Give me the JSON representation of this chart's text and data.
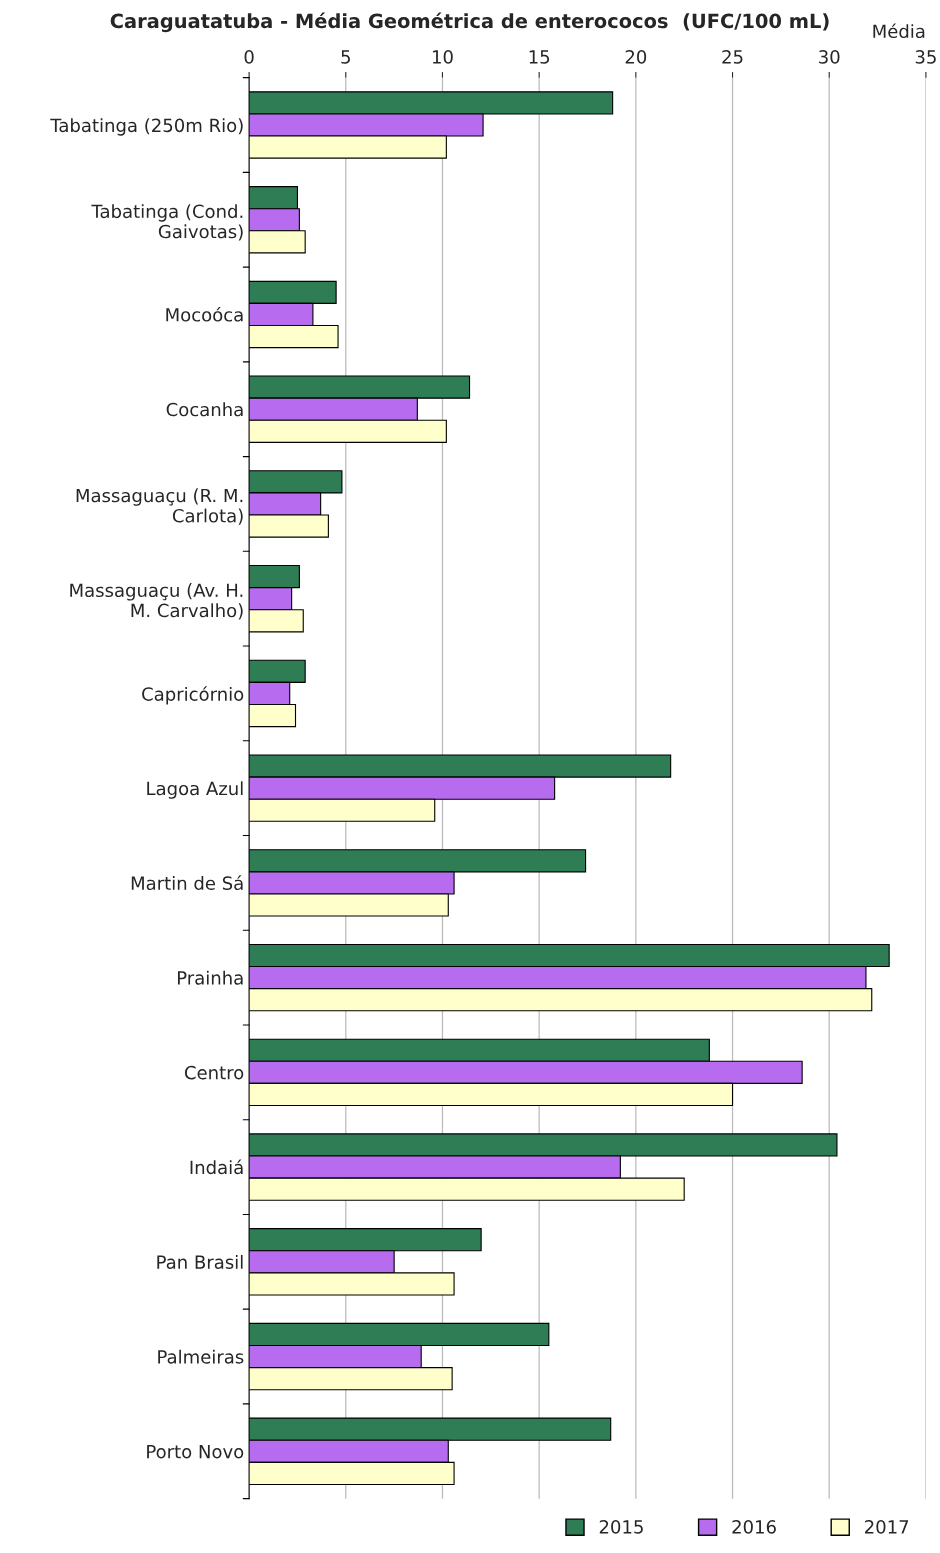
{
  "chart_data": {
    "type": "bar",
    "orientation": "horizontal",
    "title": "Caraguatatuba - Média Geométrica de enterococos  (UFC/100 mL)",
    "xlabel": "Média",
    "categories": [
      "Tabatinga (250m Rio)",
      "Tabatinga (Cond.\nGaivotas)",
      "Mocoóca",
      "Cocanha",
      "Massaguaçu (R. M.\nCarlota)",
      "Massaguaçu (Av. H.\nM. Carvalho)",
      "Capricórnio",
      "Lagoa Azul",
      "Martin de Sá",
      "Prainha",
      "Centro",
      "Indaiá",
      "Pan Brasil",
      "Palmeiras",
      "Porto Novo"
    ],
    "series": [
      {
        "name": "2015",
        "color": "#2e7d55",
        "values": [
          18.8,
          2.5,
          4.5,
          11.4,
          4.8,
          2.6,
          2.9,
          21.8,
          17.4,
          33.1,
          23.8,
          30.4,
          12.0,
          15.5,
          18.7
        ]
      },
      {
        "name": "2016",
        "color": "#b76cf0",
        "values": [
          12.1,
          2.6,
          3.3,
          8.7,
          3.7,
          2.2,
          2.1,
          15.8,
          10.6,
          31.9,
          28.6,
          19.2,
          7.5,
          8.9,
          10.3
        ]
      },
      {
        "name": "2017",
        "color": "#ffffcc",
        "values": [
          10.2,
          2.9,
          4.6,
          10.2,
          4.1,
          2.8,
          2.4,
          9.6,
          10.3,
          32.2,
          25.0,
          22.5,
          10.6,
          10.5,
          10.6
        ]
      }
    ],
    "xlim": [
      0,
      35
    ],
    "xticks": [
      0,
      5,
      10,
      15,
      20,
      25,
      30,
      35
    ],
    "grid": "x",
    "legend": "bottom right"
  }
}
